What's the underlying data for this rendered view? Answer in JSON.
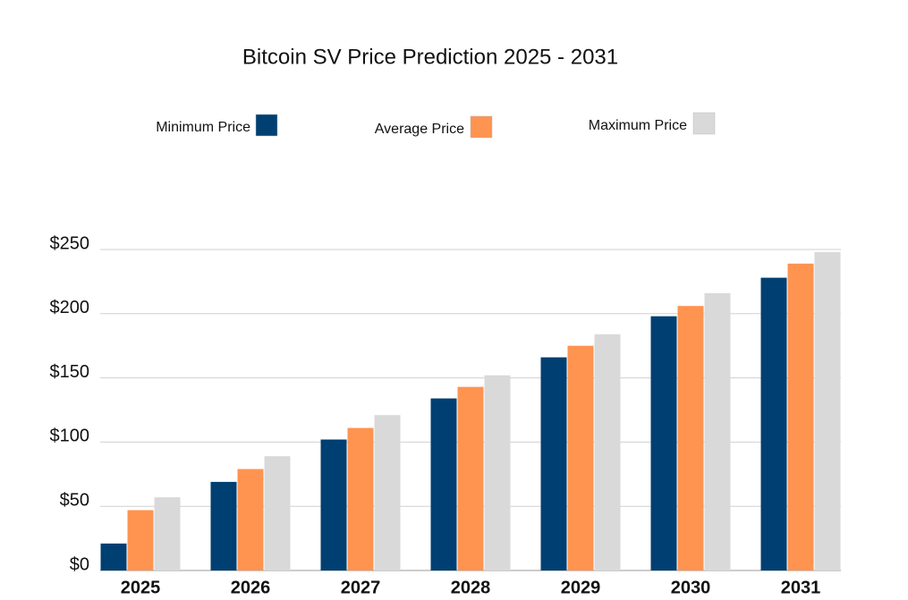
{
  "chart_data": {
    "type": "bar",
    "title": "Bitcoin SV Price Prediction 2025 - 2031",
    "categories": [
      "2025",
      "2026",
      "2027",
      "2028",
      "2029",
      "2030",
      "2031"
    ],
    "series": [
      {
        "name": "Minimum Price",
        "color": "#003f72",
        "values": [
          21,
          69,
          102,
          134,
          166,
          198,
          228
        ]
      },
      {
        "name": "Average Price",
        "color": "#ff9350",
        "values": [
          47,
          79,
          111,
          143,
          175,
          206,
          239
        ]
      },
      {
        "name": "Maximum Price",
        "color": "#d9d9d9",
        "values": [
          57,
          89,
          121,
          152,
          184,
          216,
          248
        ]
      }
    ],
    "ylim": [
      0,
      250
    ],
    "yticks": [
      {
        "value": 0,
        "label": "$0"
      },
      {
        "value": 50,
        "label": "$50"
      },
      {
        "value": 100,
        "label": "$100"
      },
      {
        "value": 150,
        "label": "$150"
      },
      {
        "value": 200,
        "label": "$200"
      },
      {
        "value": 250,
        "label": "$250"
      }
    ],
    "grid": true
  }
}
